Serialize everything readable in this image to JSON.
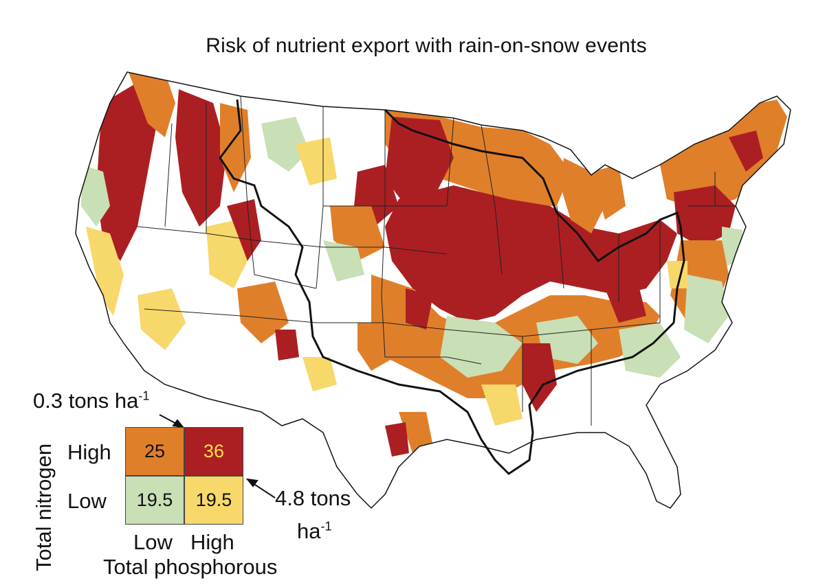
{
  "title": "Risk of nutrient export with rain-on-snow events",
  "colors": {
    "low_n_low_p": "#c9dfb6",
    "low_n_high_p": "#f7d86a",
    "high_n_low_p": "#e07f2a",
    "high_n_high_p": "#ab1f22",
    "border": "#111111",
    "state_lines": "#222222"
  },
  "legend": {
    "y_axis_label": "Total nitrogen",
    "x_axis_label": "Total phosphorous",
    "row_labels": {
      "high": "High",
      "low": "Low"
    },
    "col_labels": {
      "low": "Low",
      "high": "High"
    },
    "cells": {
      "high_low": "25",
      "high_high": "36",
      "low_low": "19.5",
      "low_high": "19.5"
    },
    "nitrogen_threshold": {
      "value": "0.3 tons ha",
      "sup": "-1"
    },
    "phosphorous_threshold": {
      "line1": "4.8 tons",
      "line2": "ha",
      "sup": "-1"
    }
  }
}
